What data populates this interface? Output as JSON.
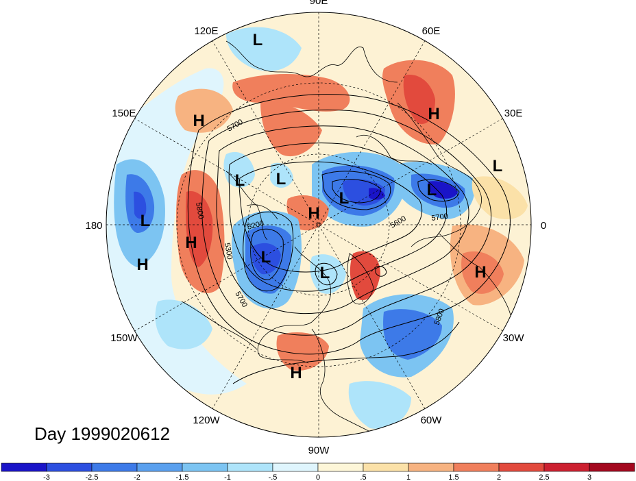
{
  "title": "Day 1999020612",
  "longitude_labels": [
    {
      "text": "90E",
      "angle_deg": 0
    },
    {
      "text": "60E",
      "angle_deg": 30
    },
    {
      "text": "30E",
      "angle_deg": 60
    },
    {
      "text": "0",
      "angle_deg": 90
    },
    {
      "text": "30W",
      "angle_deg": 120
    },
    {
      "text": "60W",
      "angle_deg": 150
    },
    {
      "text": "90W",
      "angle_deg": 180
    },
    {
      "text": "120W",
      "angle_deg": 210
    },
    {
      "text": "150W",
      "angle_deg": 240
    },
    {
      "text": "180",
      "angle_deg": 270
    },
    {
      "text": "150E",
      "angle_deg": 300
    },
    {
      "text": "120E",
      "angle_deg": 330
    }
  ],
  "pressure_centers": [
    {
      "type": "L",
      "id": "l-eastasia-north"
    },
    {
      "type": "H",
      "id": "h-westpac"
    },
    {
      "type": "H",
      "id": "h-ural"
    },
    {
      "type": "L",
      "id": "l-europe"
    },
    {
      "type": "L",
      "id": "l-siberia-west"
    },
    {
      "type": "L",
      "id": "l-siberia-east"
    },
    {
      "type": "L",
      "id": "l-arctic"
    },
    {
      "type": "H",
      "id": "h-arctic"
    },
    {
      "type": "L",
      "id": "l-barents"
    },
    {
      "type": "L",
      "id": "l-dateline"
    },
    {
      "type": "H",
      "id": "h-northpac"
    },
    {
      "type": "H",
      "id": "h-centralpac"
    },
    {
      "type": "L",
      "id": "l-alaska"
    },
    {
      "type": "L",
      "id": "l-hudson"
    },
    {
      "type": "H",
      "id": "h-africa"
    },
    {
      "type": "H",
      "id": "h-gulf"
    }
  ],
  "contour_labels": [
    "5700",
    "5800",
    "5200",
    "5300",
    "5700",
    "5700",
    "5800",
    "5600"
  ],
  "colorbar": {
    "tick_labels": [
      "-3",
      "-2.5",
      "-2",
      "-1.5",
      "-1",
      "-.5",
      "0",
      ".5",
      "1",
      "1.5",
      "2",
      "2.5",
      "3"
    ],
    "colors": [
      "#1a14c8",
      "#2c4fe0",
      "#3d7ae8",
      "#5aa0ee",
      "#7cc4f2",
      "#aee4fa",
      "#dff5fd",
      "#fdf6d8",
      "#fbe1a8",
      "#f7b381",
      "#f07f5c",
      "#e24a3d",
      "#cc2030",
      "#a3081e"
    ]
  }
}
